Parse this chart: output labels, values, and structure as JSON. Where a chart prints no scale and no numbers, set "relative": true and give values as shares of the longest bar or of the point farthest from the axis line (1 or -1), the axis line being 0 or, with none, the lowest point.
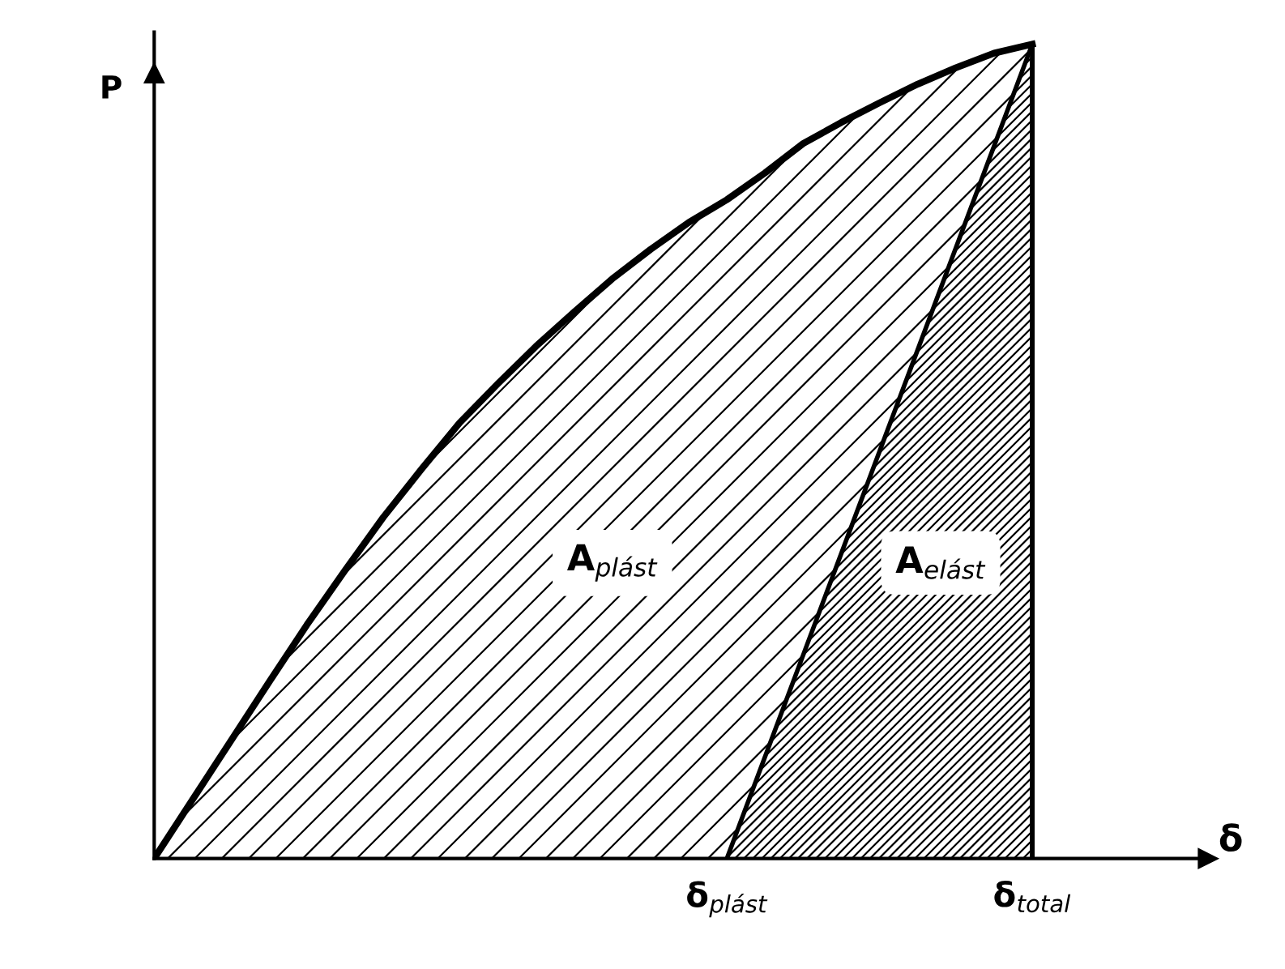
{
  "chart_data": {
    "type": "area",
    "relative": true,
    "xlabel": "δ",
    "ylabel": "P",
    "categories": [
      null,
      null,
      null,
      null,
      null,
      null,
      null,
      null,
      null,
      null,
      null,
      null,
      null,
      null,
      null,
      "δ$_{plást}$",
      null,
      null,
      null,
      null,
      null,
      null,
      null,
      "δ$_{total}$"
    ],
    "series": [
      {
        "color": "#000000",
        "values": [
          0,
          0.072,
          0.144,
          0.216,
          0.287,
          0.354,
          0.419,
          0.478,
          0.535,
          0.583,
          0.629,
          0.671,
          0.712,
          0.748,
          0.781,
          0.809,
          0.842,
          0.878,
          0.904,
          0.928,
          0.951,
          0.971,
          0.989,
          1
        ]
      },
      {
        "color": "#000000",
        "values": [
          null,
          null,
          null,
          null,
          null,
          null,
          null,
          null,
          null,
          null,
          null,
          null,
          null,
          null,
          null,
          0,
          0.125,
          0.25,
          0.375,
          0.5,
          0.625,
          0.75,
          0.875,
          1
        ]
      }
    ],
    "annotations": [
      "A$_{plást}$",
      "A$_{elást}$"
    ]
  }
}
